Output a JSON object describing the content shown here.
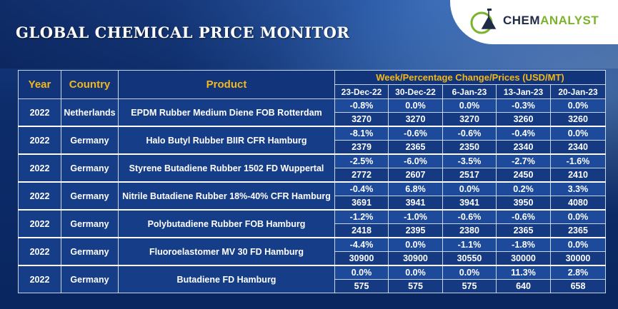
{
  "title": "GLOBAL CHEMICAL PRICE MONITOR",
  "brand": {
    "part1": "CHEM",
    "part2": "ANALYST",
    "color_dark": "#1e2a47",
    "color_green": "#7bb42c"
  },
  "table": {
    "headers": {
      "year": "Year",
      "country": "Country",
      "product": "Product",
      "week": "Week/Percentage Change/Prices (USD/MT)"
    },
    "dates": [
      "23-Dec-22",
      "30-Dec-22",
      "6-Jan-23",
      "13-Jan-23",
      "20-Jan-23"
    ],
    "rows": [
      {
        "year": "2022",
        "country": "Netherlands",
        "product": "EPDM Rubber Medium Diene FOB Rotterdam",
        "pct": [
          "-0.8%",
          "0.0%",
          "0.0%",
          "-0.3%",
          "0.0%"
        ],
        "prices": [
          "3270",
          "3270",
          "3270",
          "3260",
          "3260"
        ]
      },
      {
        "year": "2022",
        "country": "Germany",
        "product": "Halo Butyl Rubber BIIR CFR Hamburg",
        "pct": [
          "-8.1%",
          "-0.6%",
          "-0.6%",
          "-0.4%",
          "0.0%"
        ],
        "prices": [
          "2379",
          "2365",
          "2350",
          "2340",
          "2340"
        ]
      },
      {
        "year": "2022",
        "country": "Germany",
        "product": "Styrene Butadiene Rubber 1502 FD Wuppertal",
        "pct": [
          "-2.5%",
          "-6.0%",
          "-3.5%",
          "-2.7%",
          "-1.6%"
        ],
        "prices": [
          "2772",
          "2607",
          "2517",
          "2450",
          "2410"
        ]
      },
      {
        "year": "2022",
        "country": "Germany",
        "product": "Nitrile Butadiene Rubber 18%-40% CFR Hamburg",
        "pct": [
          "-0.4%",
          "6.8%",
          "0.0%",
          "0.2%",
          "3.3%"
        ],
        "prices": [
          "3691",
          "3941",
          "3941",
          "3950",
          "4080"
        ]
      },
      {
        "year": "2022",
        "country": "Germany",
        "product": "Polybutadiene Rubber FOB Hamburg",
        "pct": [
          "-1.2%",
          "-1.0%",
          "-0.6%",
          "-0.6%",
          "0.0%"
        ],
        "prices": [
          "2418",
          "2395",
          "2380",
          "2365",
          "2365"
        ]
      },
      {
        "year": "2022",
        "country": "Germany",
        "product": "Fluoroelastomer MV 30 FD Hamburg",
        "pct": [
          "-4.4%",
          "0.0%",
          "-1.1%",
          "-1.8%",
          "0.0%"
        ],
        "prices": [
          "30900",
          "30900",
          "30550",
          "30000",
          "30000"
        ]
      },
      {
        "year": "2022",
        "country": "Germany",
        "product": "Butadiene FD Hamburg",
        "pct": [
          "0.0%",
          "0.0%",
          "0.0%",
          "11.3%",
          "2.8%"
        ],
        "prices": [
          "575",
          "575",
          "575",
          "640",
          "658"
        ]
      }
    ]
  }
}
